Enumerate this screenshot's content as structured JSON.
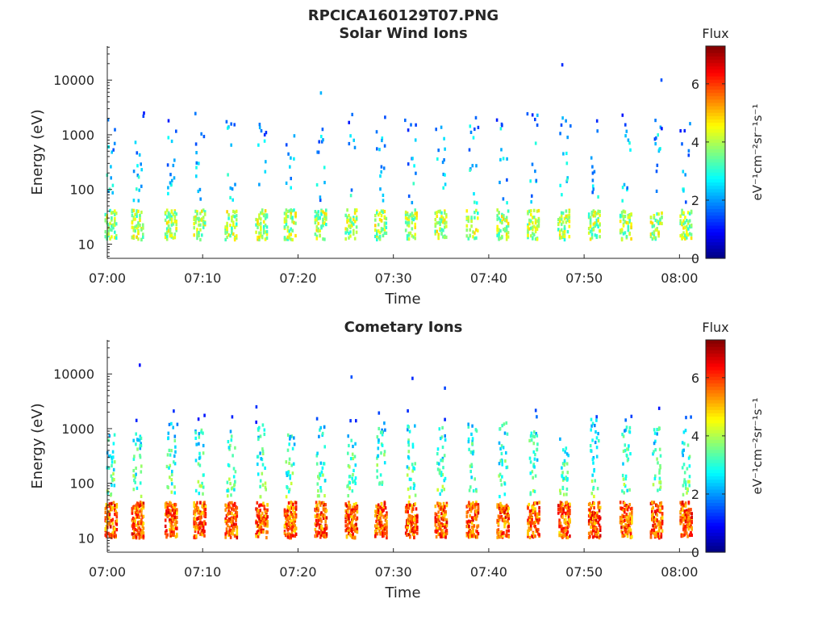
{
  "figure": {
    "title": "RPCICA160129T07.PNG"
  },
  "chart_data": [
    {
      "type": "heatmap",
      "title": "Solar Wind Ions",
      "xlabel": "Time",
      "ylabel": "Energy (eV)",
      "x_ticks": [
        "07:00",
        "07:10",
        "07:20",
        "07:30",
        "07:40",
        "07:50",
        "08:00"
      ],
      "y_ticks": [
        "10",
        "100",
        "1000",
        "10000"
      ],
      "y_scale": "log",
      "colorbar": {
        "title": "Flux",
        "label": "eV⁻¹cm⁻²sr⁻¹s⁻¹",
        "ticks": [
          "0",
          "2",
          "4",
          "6"
        ],
        "range": [
          0,
          7.3
        ]
      },
      "sweep_times_min": [
        0.3,
        3.1,
        6.6,
        9.6,
        12.9,
        16.1,
        19.1,
        22.3,
        25.5,
        28.6,
        31.8,
        34.9,
        38.2,
        41.4,
        44.6,
        47.8,
        51.0,
        54.3,
        57.5,
        60.6
      ],
      "low_energy_band_eV": [
        12,
        42
      ],
      "typical_flux_low_band": 3.8,
      "typical_flux_high_band": 2.3,
      "note_points": [
        {
          "t_min": 22.3,
          "energy_eV": 5800,
          "flux": 2.2
        },
        {
          "t_min": 47.6,
          "energy_eV": 19000,
          "flux": 1.2
        },
        {
          "t_min": 58.0,
          "energy_eV": 10000,
          "flux": 1.5
        }
      ]
    },
    {
      "type": "heatmap",
      "title": "Cometary Ions",
      "xlabel": "Time",
      "ylabel": "Energy (eV)",
      "x_ticks": [
        "07:00",
        "07:10",
        "07:20",
        "07:30",
        "07:40",
        "07:50",
        "08:00"
      ],
      "y_ticks": [
        "10",
        "100",
        "1000",
        "10000"
      ],
      "y_scale": "log",
      "colorbar": {
        "title": "Flux",
        "label": "eV⁻¹cm⁻²sr⁻¹s⁻¹",
        "ticks": [
          "0",
          "2",
          "4",
          "6"
        ],
        "range": [
          0,
          7.3
        ]
      },
      "sweep_times_min": [
        0.3,
        3.1,
        6.6,
        9.6,
        12.9,
        16.1,
        19.1,
        22.3,
        25.5,
        28.6,
        31.8,
        34.9,
        38.2,
        41.4,
        44.6,
        47.8,
        51.0,
        54.3,
        57.5,
        60.6
      ],
      "low_energy_band_eV": [
        10,
        45
      ],
      "typical_flux_low_band": 5.6,
      "typical_flux_high_band": 3.3,
      "note_points": [
        {
          "t_min": 3.3,
          "energy_eV": 14500,
          "flux": 1.0
        },
        {
          "t_min": 25.5,
          "energy_eV": 8800,
          "flux": 1.5
        },
        {
          "t_min": 31.9,
          "energy_eV": 8300,
          "flux": 1.2
        },
        {
          "t_min": 35.3,
          "energy_eV": 5500,
          "flux": 1.4
        }
      ]
    }
  ]
}
